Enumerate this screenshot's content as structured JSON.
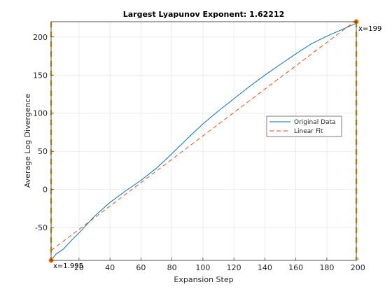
{
  "chart_data": {
    "type": "line",
    "title": "Largest Lyapunov Exponent: 1.62212",
    "xlabel": "Expansion Step",
    "ylabel": "Average Log Divergence",
    "xlim": [
      1.995,
      199
    ],
    "ylim": [
      -93,
      220
    ],
    "xticks": [
      20,
      40,
      60,
      80,
      100,
      120,
      140,
      160,
      180,
      200
    ],
    "yticks": [
      -50,
      0,
      50,
      100,
      150,
      200
    ],
    "grid": true,
    "legend": "right-middle",
    "series": [
      {
        "name": "Original Data",
        "color": "#0072BD",
        "style": "solid",
        "x": [
          2,
          5,
          10,
          15,
          20,
          30,
          40,
          50,
          60,
          70,
          80,
          90,
          100,
          110,
          120,
          130,
          140,
          150,
          160,
          170,
          180,
          190,
          199
        ],
        "y": [
          -93,
          -85,
          -78,
          -67,
          -57,
          -35,
          -17,
          -2,
          12,
          28,
          47,
          67,
          86,
          103,
          119,
          135,
          150,
          164,
          178,
          191,
          201,
          210,
          218
        ]
      },
      {
        "name": "Linear Fit",
        "color": "#D95319",
        "style": "dashed",
        "x": [
          1.995,
          199
        ],
        "y": [
          -80,
          222
        ]
      }
    ],
    "markers": [
      {
        "label": "x=1.995",
        "x": 1.995,
        "color": "#EDB120"
      },
      {
        "label": "x=199",
        "x": 199,
        "color": "#EDB120"
      }
    ]
  }
}
